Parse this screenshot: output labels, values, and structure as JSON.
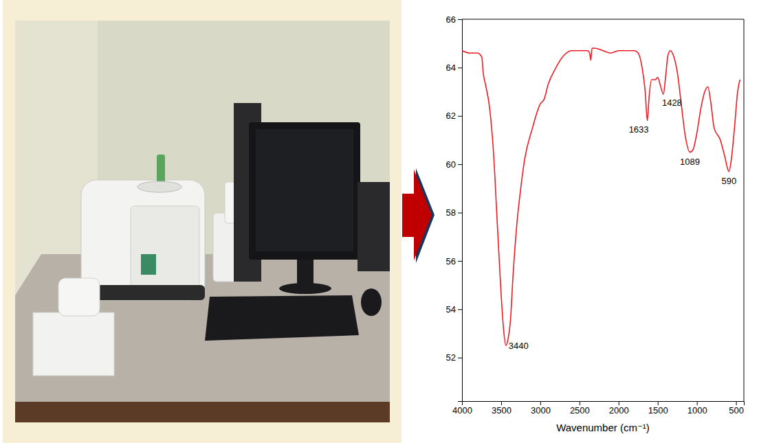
{
  "chart_data": {
    "type": "line",
    "x_label": "Wavenumber (cm⁻¹)",
    "color": "#ee1c24",
    "xlim": [
      4000,
      400
    ],
    "ylim": [
      50.2,
      66
    ],
    "xticks": [
      4000,
      3500,
      3000,
      2500,
      2000,
      1500,
      1000,
      500
    ],
    "yticks": [
      52,
      54,
      56,
      58,
      60,
      62,
      64,
      66
    ],
    "x": [
      4000,
      3900,
      3800,
      3760,
      3745,
      3730,
      3700,
      3650,
      3600,
      3550,
      3500,
      3470,
      3440,
      3410,
      3380,
      3350,
      3300,
      3250,
      3200,
      3100,
      3000,
      2950,
      2900,
      2800,
      2700,
      2600,
      2500,
      2400,
      2370,
      2355,
      2340,
      2300,
      2200,
      2100,
      2000,
      1900,
      1800,
      1750,
      1700,
      1660,
      1633,
      1610,
      1580,
      1530,
      1500,
      1470,
      1428,
      1400,
      1370,
      1340,
      1300,
      1250,
      1200,
      1150,
      1089,
      1050,
      1000,
      950,
      900,
      860,
      820,
      780,
      700,
      650,
      590,
      560,
      520,
      480,
      450
    ],
    "values": [
      64.7,
      64.6,
      64.6,
      64.5,
      64.4,
      63.8,
      63.3,
      62.4,
      60.6,
      57.6,
      54.6,
      53.2,
      52.5,
      52.8,
      53.6,
      55.3,
      57.5,
      59.0,
      60.2,
      61.5,
      62.5,
      62.7,
      63.3,
      64.0,
      64.5,
      64.7,
      64.7,
      64.7,
      64.6,
      64.3,
      64.8,
      64.8,
      64.7,
      64.6,
      64.7,
      64.7,
      64.7,
      64.6,
      64.0,
      63.0,
      61.8,
      62.8,
      63.5,
      63.5,
      63.6,
      63.3,
      62.9,
      63.6,
      64.5,
      64.7,
      64.5,
      63.8,
      62.5,
      61.2,
      60.5,
      60.6,
      61.3,
      62.3,
      63.0,
      63.2,
      62.5,
      61.5,
      61.0,
      60.4,
      59.7,
      60.2,
      61.5,
      63.0,
      63.5
    ],
    "annotations": [
      {
        "label": "3440",
        "x": 3440,
        "y": 52.5
      },
      {
        "label": "1633",
        "x": 1633,
        "y": 61.8
      },
      {
        "label": "1428",
        "x": 1428,
        "y": 62.9
      },
      {
        "label": "1089",
        "x": 1089,
        "y": 60.5
      },
      {
        "label": "590",
        "x": 590,
        "y": 59.7
      }
    ]
  }
}
